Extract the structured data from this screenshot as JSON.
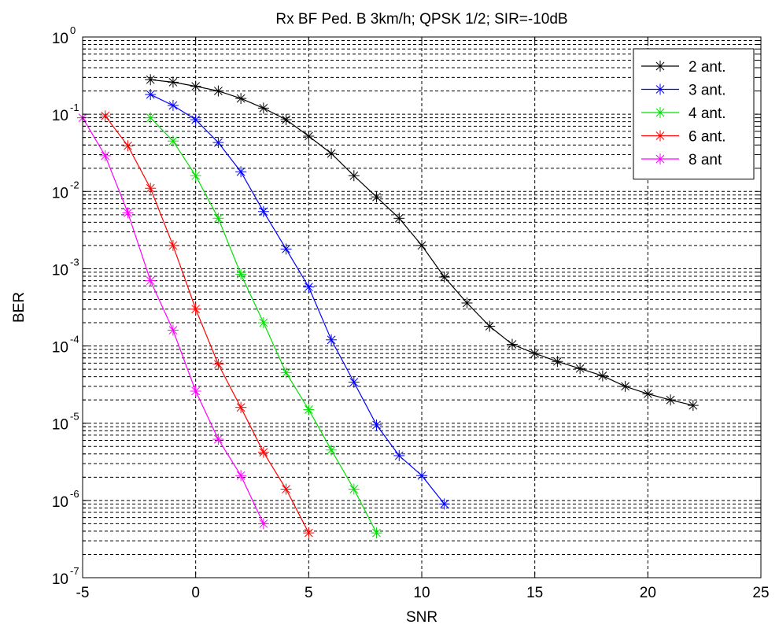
{
  "chart_data": {
    "type": "line",
    "title": "Rx BF Ped. B 3km/h; QPSK 1/2; SIR=-10dB",
    "xlabel": "SNR",
    "ylabel": "BER",
    "xlim": [
      -5,
      25
    ],
    "ylim": [
      1e-07,
      1
    ],
    "yscale": "log",
    "grid": true,
    "legend_position": "top-right",
    "marker": "asterisk",
    "x_ticks": [
      -5,
      0,
      5,
      10,
      15,
      20,
      25
    ],
    "x_tick_labels": [
      "-5",
      "0",
      "5",
      "10",
      "15",
      "20",
      "25"
    ],
    "y_tick_exponents": [
      0,
      -1,
      -2,
      -3,
      -4,
      -5,
      -6,
      -7
    ],
    "y_tick_base": "10",
    "series": [
      {
        "name": "2 ant.",
        "color": "#000000",
        "x": [
          -2,
          -1,
          0,
          1,
          2,
          3,
          4,
          5,
          6,
          7,
          8,
          9,
          10,
          11,
          12,
          13,
          14,
          15,
          16,
          17,
          18,
          19,
          20,
          21,
          22
        ],
        "y": [
          0.28,
          0.26,
          0.23,
          0.2,
          0.16,
          0.12,
          0.085,
          0.052,
          0.031,
          0.016,
          0.0085,
          0.0045,
          0.002,
          0.00078,
          0.00036,
          0.00018,
          0.000105,
          8e-05,
          6.3e-05,
          5.1e-05,
          4.1e-05,
          3e-05,
          2.4e-05,
          2e-05,
          1.7e-05
        ]
      },
      {
        "name": "3 ant.",
        "color": "#0000ff",
        "x": [
          -2,
          -1,
          0,
          1,
          2,
          3,
          4,
          5,
          6,
          7,
          8,
          9,
          10,
          11
        ],
        "y": [
          0.18,
          0.13,
          0.085,
          0.043,
          0.018,
          0.0055,
          0.0018,
          0.00058,
          0.00012,
          3.4e-05,
          9.5e-06,
          3.8e-06,
          2.1e-06,
          9e-07
        ]
      },
      {
        "name": "4 ant.",
        "color": "#00e000",
        "x": [
          -2,
          -1,
          0,
          1,
          2,
          3,
          4,
          5,
          6,
          7,
          8
        ],
        "y": [
          0.09,
          0.045,
          0.016,
          0.0045,
          0.00085,
          0.0002,
          4.5e-05,
          1.5e-05,
          4.5e-06,
          1.4e-06,
          3.8e-07
        ]
      },
      {
        "name": "6 ant.",
        "color": "#ff0000",
        "x": [
          -4,
          -3,
          -2,
          -1,
          0,
          1,
          2,
          3,
          4,
          5
        ],
        "y": [
          0.095,
          0.039,
          0.011,
          0.002,
          0.0003,
          5.8e-05,
          1.6e-05,
          4.2e-06,
          1.4e-06,
          3.8e-07
        ]
      },
      {
        "name": "8 ant",
        "color": "#ff00ff",
        "x": [
          -5,
          -4,
          -3,
          -2,
          -1,
          0,
          1,
          2,
          3
        ],
        "y": [
          0.09,
          0.029,
          0.0053,
          0.0007,
          0.00016,
          2.6e-05,
          6.2e-06,
          2.1e-06,
          5e-07
        ]
      }
    ]
  }
}
